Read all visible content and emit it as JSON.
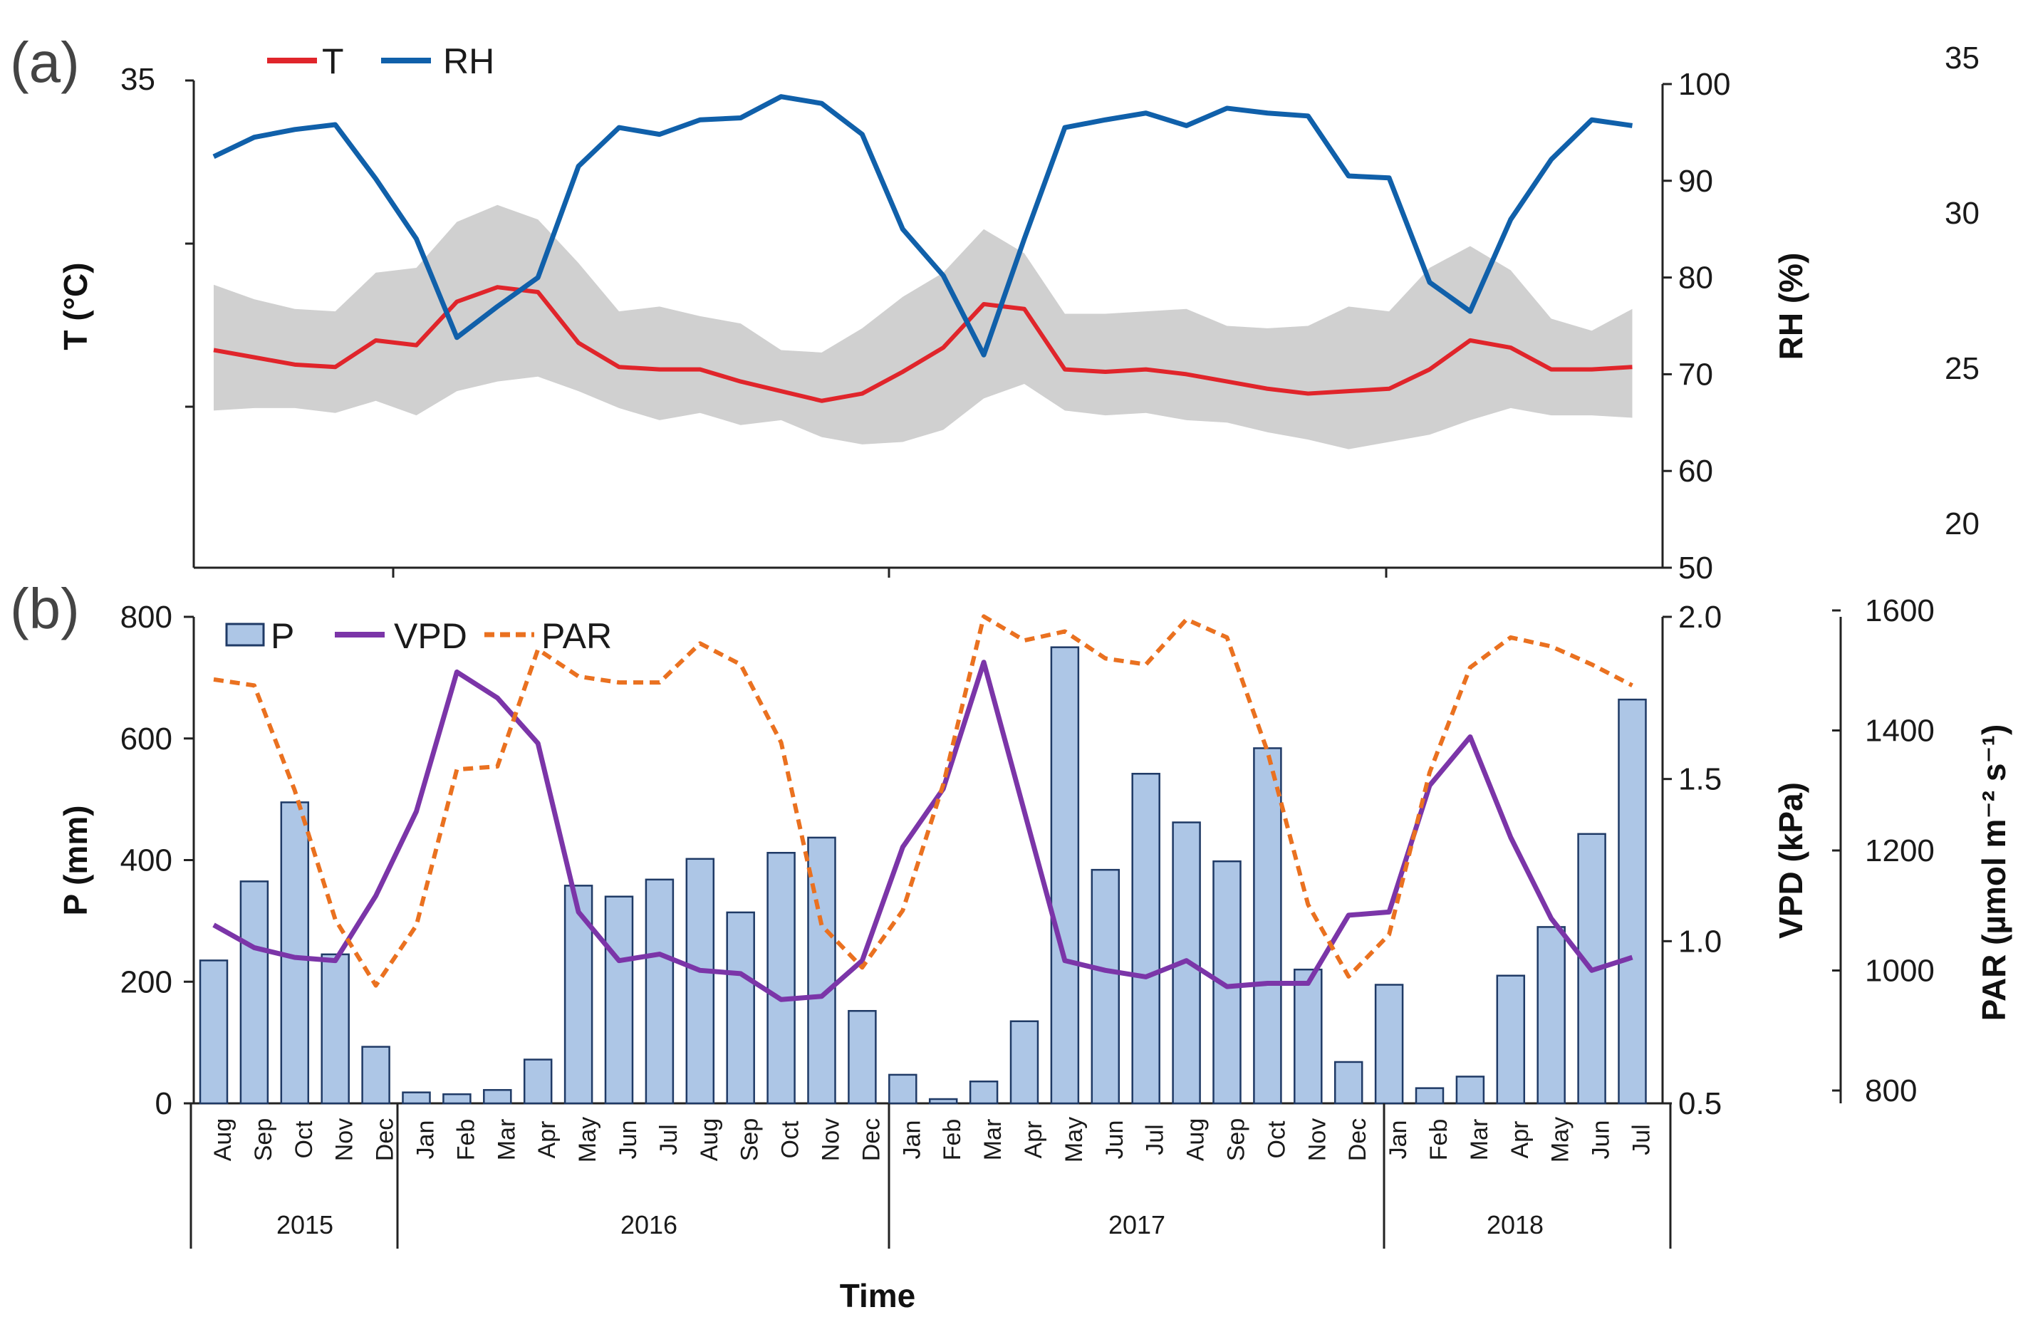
{
  "figure": {
    "x_title": "Time",
    "months": [
      "Aug",
      "Sep",
      "Oct",
      "Nov",
      "Dec",
      "Jan",
      "Feb",
      "Mar",
      "Apr",
      "May",
      "Jun",
      "Jul",
      "Aug",
      "Sep",
      "Oct",
      "Nov",
      "Dec",
      "Jan",
      "Feb",
      "Mar",
      "Apr",
      "May",
      "Jun",
      "Jul",
      "Aug",
      "Sep",
      "Oct",
      "Nov",
      "Dec",
      "Jan",
      "Feb",
      "Mar",
      "Apr",
      "May",
      "Jun",
      "Jul"
    ],
    "years": [
      "2015",
      "2016",
      "2017",
      "2018"
    ]
  },
  "colors": {
    "T": "#e0252b",
    "RH": "#1060aa",
    "band": "#d0d0d0",
    "P_fill": "#adc6e6",
    "P_stroke": "#1f3a66",
    "VPD": "#7b35a8",
    "PAR": "#ea7120"
  },
  "chart_data": [
    {
      "panel": "(a)",
      "type": "line",
      "legend": [
        "T",
        "RH"
      ],
      "left_axis": {
        "title": "T (°C)",
        "top_tick_label": "35",
        "ylim": [
          15,
          35
        ]
      },
      "right_axis": {
        "title": "RH (%)",
        "ylim": [
          50,
          100
        ],
        "ticks": [
          50,
          60,
          70,
          80,
          90,
          100
        ]
      },
      "far_right_axis": {
        "ticks": [
          20,
          25,
          30,
          35
        ]
      },
      "series": [
        {
          "name": "T",
          "axis": "left",
          "values": [
            24.0,
            23.7,
            23.4,
            23.3,
            24.4,
            24.2,
            26.0,
            26.6,
            26.4,
            24.3,
            23.3,
            23.2,
            23.2,
            22.7,
            22.3,
            21.9,
            22.2,
            23.1,
            24.1,
            25.9,
            25.7,
            23.2,
            23.1,
            23.2,
            23.0,
            22.7,
            22.4,
            22.2,
            22.3,
            22.4,
            23.2,
            24.4,
            24.1,
            23.2,
            23.2,
            23.3
          ]
        },
        {
          "name": "T band upper",
          "axis": "left",
          "values": [
            26.7,
            26.1,
            25.7,
            25.6,
            27.2,
            27.4,
            29.3,
            30.0,
            29.4,
            27.6,
            25.6,
            25.8,
            25.4,
            25.1,
            24.0,
            23.9,
            24.9,
            26.2,
            27.2,
            29.0,
            28.0,
            25.5,
            25.5,
            25.6,
            25.7,
            25.0,
            24.9,
            25.0,
            25.8,
            25.6,
            27.4,
            28.3,
            27.3,
            25.3,
            24.8,
            25.7
          ]
        },
        {
          "name": "T band lower",
          "axis": "left",
          "values": [
            21.5,
            21.6,
            21.6,
            21.4,
            21.9,
            21.3,
            22.3,
            22.7,
            22.9,
            22.3,
            21.6,
            21.1,
            21.4,
            20.9,
            21.1,
            20.4,
            20.1,
            20.2,
            20.7,
            22.0,
            22.6,
            21.5,
            21.3,
            21.4,
            21.1,
            21.0,
            20.6,
            20.3,
            19.9,
            20.2,
            20.5,
            21.1,
            21.6,
            21.3,
            21.3,
            21.2
          ]
        },
        {
          "name": "RH",
          "axis": "right",
          "values": [
            92.5,
            94.5,
            95.3,
            95.8,
            90.2,
            84.0,
            73.8,
            77.0,
            80.0,
            91.5,
            95.5,
            94.8,
            96.3,
            96.5,
            98.7,
            98.0,
            94.8,
            85.0,
            80.2,
            72.0,
            84.0,
            95.5,
            96.3,
            97.0,
            95.7,
            97.5,
            97.0,
            96.7,
            90.5,
            90.3,
            79.5,
            76.5,
            86.0,
            92.2,
            96.3,
            95.7
          ]
        }
      ]
    },
    {
      "panel": "(b)",
      "type": "bar+line",
      "legend": [
        "P",
        "VPD",
        "PAR"
      ],
      "x_title": "Time",
      "left_axis": {
        "title": "P (mm)",
        "ylim": [
          0,
          800
        ],
        "ticks": [
          0,
          200,
          400,
          600,
          800
        ]
      },
      "right_axis": {
        "title": "VPD (kPa)",
        "ylim": [
          0.5,
          2.0
        ],
        "ticks": [
          "0.5",
          "1.0",
          "1.5",
          "2.0"
        ]
      },
      "far_right_axis": {
        "title": "PAR (µmol m⁻² s⁻¹)",
        "ylim": [
          800,
          1600
        ],
        "ticks": [
          800,
          1000,
          1200,
          1400,
          1600
        ]
      },
      "series": [
        {
          "name": "P",
          "type": "bar",
          "axis": "left",
          "values": [
            235,
            365,
            495,
            245,
            93,
            18,
            15,
            22,
            72,
            358,
            340,
            368,
            402,
            314,
            412,
            437,
            152,
            47,
            7,
            36,
            135,
            750,
            384,
            542,
            462,
            398,
            584,
            220,
            68,
            195,
            25,
            44,
            210,
            290,
            443,
            664
          ]
        },
        {
          "name": "VPD",
          "type": "line",
          "axis": "right",
          "values": [
            1.05,
            0.98,
            0.95,
            0.94,
            1.14,
            1.4,
            1.83,
            1.75,
            1.61,
            1.09,
            0.94,
            0.96,
            0.91,
            0.9,
            0.82,
            0.83,
            0.94,
            1.29,
            1.47,
            1.86,
            1.4,
            0.94,
            0.91,
            0.89,
            0.94,
            0.86,
            0.87,
            0.87,
            1.08,
            1.09,
            1.48,
            1.63,
            1.32,
            1.07,
            0.91,
            0.95
          ]
        },
        {
          "name": "PAR",
          "type": "line",
          "style": "dashed",
          "axis": "far_right",
          "values": [
            1485,
            1475,
            1300,
            1085,
            975,
            1075,
            1335,
            1340,
            1535,
            1490,
            1480,
            1480,
            1545,
            1510,
            1380,
            1075,
            1005,
            1100,
            1310,
            1590,
            1550,
            1565,
            1520,
            1510,
            1585,
            1555,
            1365,
            1110,
            990,
            1060,
            1330,
            1505,
            1555,
            1540,
            1510,
            1475
          ]
        }
      ]
    }
  ]
}
